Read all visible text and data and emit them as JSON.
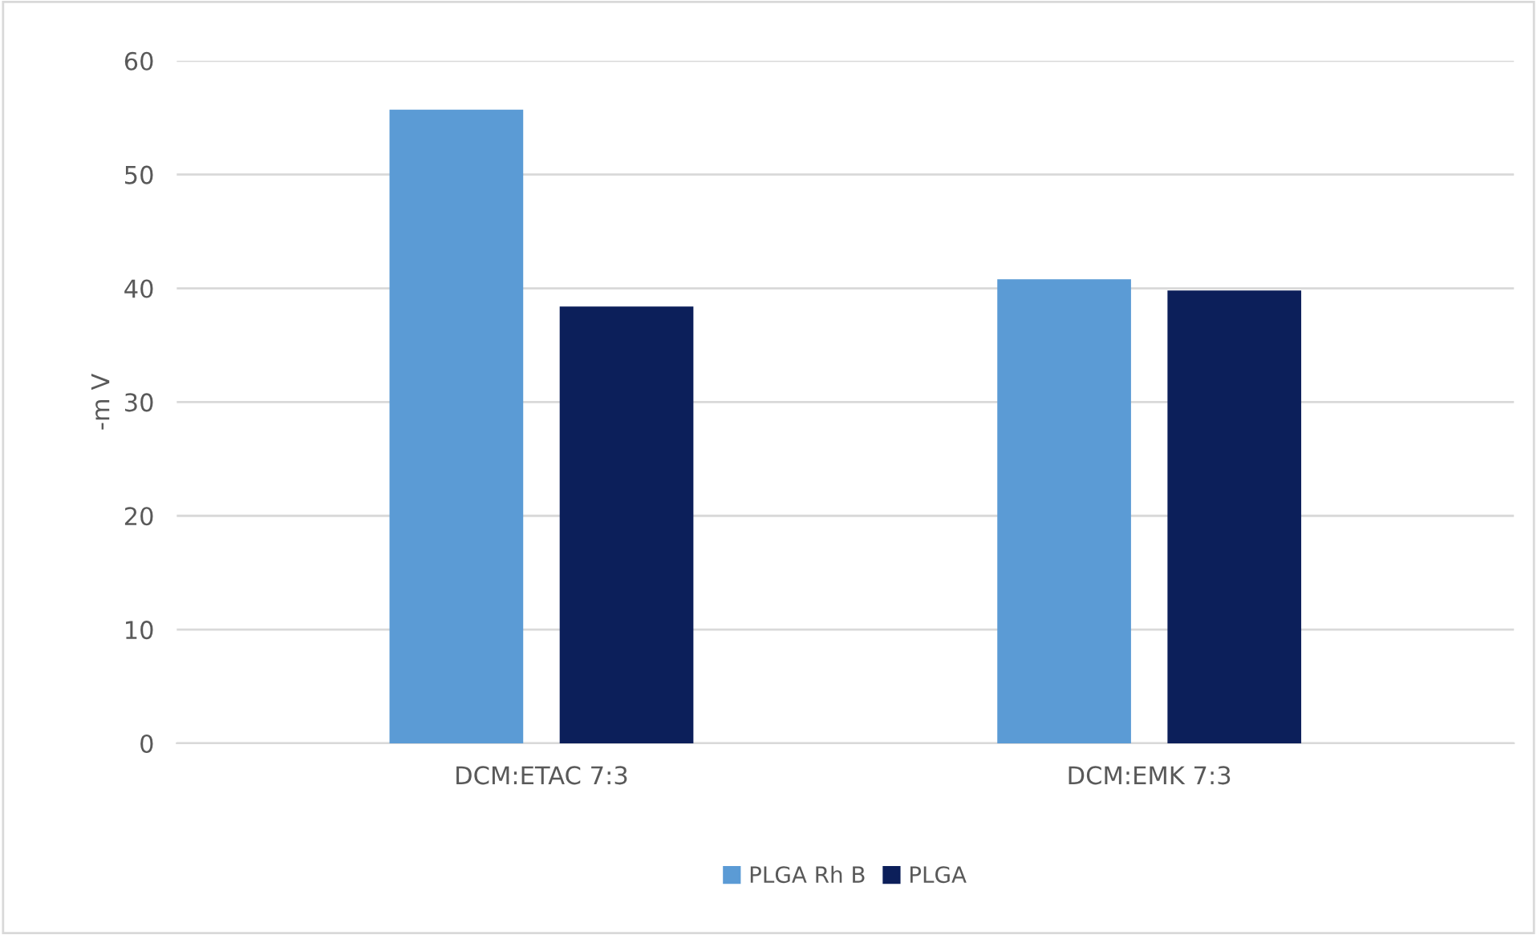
{
  "chart_data": {
    "type": "bar",
    "ylabel": "-m V",
    "categories": [
      "DCM:ETAC 7:3",
      "DCM:EMK 7:3"
    ],
    "series": [
      {
        "name": "PLGA Rh B",
        "color": "#5b9bd5",
        "values": [
          55.7,
          40.8
        ]
      },
      {
        "name": "PLGA",
        "color": "#0c1f5a",
        "values": [
          38.4,
          39.8
        ]
      }
    ],
    "ylim": [
      0,
      60
    ],
    "yticks": [
      0,
      10,
      20,
      30,
      40,
      50,
      60
    ],
    "grid": "y",
    "legend": "bottom"
  }
}
